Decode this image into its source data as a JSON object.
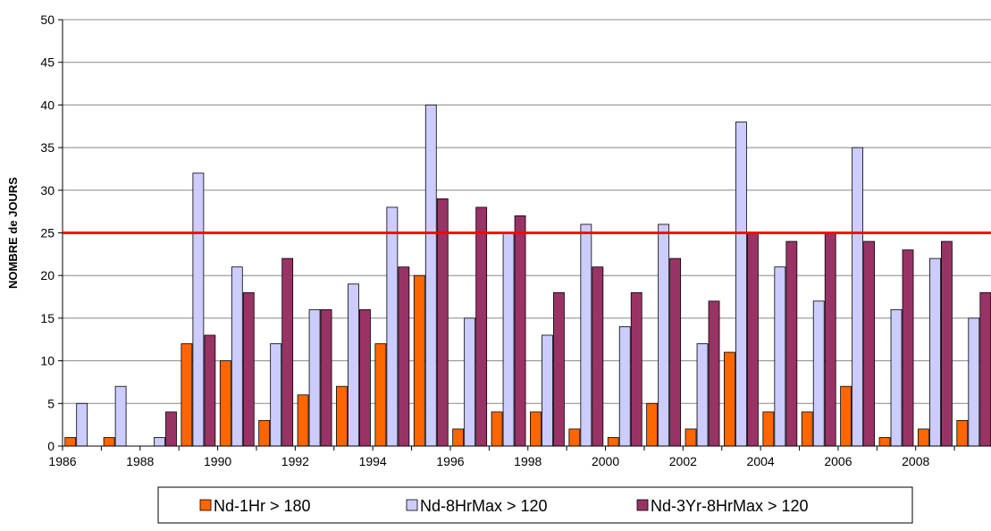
{
  "chart_data": {
    "type": "bar",
    "title": "",
    "xlabel": "",
    "ylabel": "NOMBRE de JOURS",
    "ylim": [
      0,
      50
    ],
    "yticks": [
      0,
      5,
      10,
      15,
      20,
      25,
      30,
      35,
      40,
      45,
      50
    ],
    "grid": true,
    "legend_position": "bottom",
    "categories": [
      "1986",
      "1987",
      "1988",
      "1989",
      "1990",
      "1991",
      "1992",
      "1993",
      "1994",
      "1995",
      "1996",
      "1997",
      "1998",
      "1999",
      "2000",
      "2001",
      "2002",
      "2003",
      "2004",
      "2005",
      "2006",
      "2007",
      "2008",
      "2009"
    ],
    "xtick_labels": [
      "1986",
      "",
      "1988",
      "",
      "1990",
      "",
      "1992",
      "",
      "1994",
      "",
      "1996",
      "",
      "1998",
      "",
      "2000",
      "",
      "2002",
      "",
      "2004",
      "",
      "2006",
      "",
      "2008",
      ""
    ],
    "series": [
      {
        "name": "Nd-1Hr > 180",
        "color": "#ff6600",
        "values": [
          1,
          1,
          0,
          12,
          10,
          3,
          6,
          7,
          12,
          20,
          2,
          4,
          4,
          2,
          1,
          5,
          2,
          11,
          4,
          4,
          7,
          1,
          2,
          3
        ]
      },
      {
        "name": "Nd-8HrMax > 120",
        "color": "#ccccff",
        "values": [
          5,
          7,
          1,
          32,
          21,
          12,
          16,
          19,
          28,
          40,
          15,
          25,
          13,
          26,
          14,
          26,
          12,
          38,
          21,
          17,
          35,
          16,
          22,
          15
        ]
      },
      {
        "name": "Nd-3Yr-8HrMax > 120",
        "color": "#993366",
        "values": [
          null,
          null,
          4,
          13,
          18,
          22,
          16,
          16,
          21,
          29,
          28,
          27,
          18,
          21,
          18,
          22,
          17,
          25,
          24,
          25,
          24,
          23,
          24,
          18
        ]
      }
    ],
    "reference_line": {
      "value": 25,
      "color": "#ff0000"
    }
  }
}
